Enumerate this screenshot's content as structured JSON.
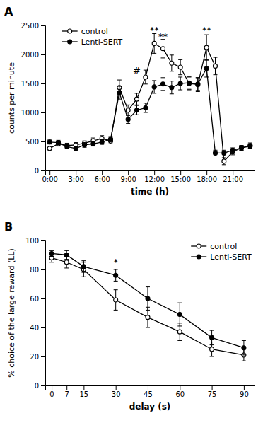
{
  "chart_data": [
    {
      "type": "line",
      "title": "A",
      "xlabel": "time (h)",
      "ylabel": "counts per minute",
      "x": [
        0,
        1,
        2,
        3,
        4,
        5,
        6,
        7,
        8,
        9,
        10,
        11,
        12,
        13,
        14,
        15,
        16,
        17,
        18,
        19,
        20,
        21,
        22,
        23
      ],
      "series": [
        {
          "name": "control",
          "color": "#000000",
          "marker": "open-circle",
          "values": [
            380,
            460,
            430,
            440,
            470,
            510,
            550,
            510,
            1430,
            1040,
            1230,
            1610,
            2190,
            2100,
            1850,
            1780,
            1500,
            1480,
            2120,
            1800,
            160,
            320,
            390,
            420
          ],
          "errors": [
            40,
            40,
            40,
            40,
            40,
            50,
            50,
            50,
            130,
            90,
            100,
            120,
            170,
            160,
            140,
            130,
            110,
            120,
            220,
            150,
            60,
            50,
            40,
            40
          ]
        },
        {
          "name": "Lenti-SERT",
          "color": "#000000",
          "marker": "circle",
          "values": [
            490,
            480,
            410,
            380,
            440,
            460,
            490,
            540,
            1340,
            880,
            1040,
            1080,
            1440,
            1490,
            1430,
            1500,
            1510,
            1490,
            1760,
            300,
            300,
            350,
            390,
            430
          ],
          "errors": [
            35,
            40,
            35,
            35,
            40,
            40,
            40,
            45,
            110,
            70,
            80,
            80,
            110,
            110,
            110,
            110,
            110,
            110,
            150,
            50,
            50,
            40,
            40,
            45
          ]
        }
      ],
      "xlim": [
        -0.5,
        23.5
      ],
      "xticks": [
        {
          "value": 0,
          "label": "0:00"
        },
        {
          "value": 3,
          "label": "3:00"
        },
        {
          "value": 6,
          "label": "6:00"
        },
        {
          "value": 9,
          "label": "9:00"
        },
        {
          "value": 12,
          "label": "12:00"
        },
        {
          "value": 15,
          "label": "15:00"
        },
        {
          "value": 18,
          "label": "18:00"
        },
        {
          "value": 21,
          "label": "21:00"
        }
      ],
      "ylim": [
        0,
        2500
      ],
      "yticks": [
        0,
        500,
        1000,
        1500,
        2000,
        2500
      ],
      "annotations": [
        {
          "text": "#",
          "x": 10,
          "y": 1670
        },
        {
          "text": "**",
          "x": 12,
          "y": 2370
        },
        {
          "text": "**",
          "x": 13,
          "y": 2260
        },
        {
          "text": "**",
          "x": 18,
          "y": 2360
        }
      ],
      "legend": "upper left",
      "grid": false
    },
    {
      "type": "line",
      "title": "B",
      "xlabel": "delay (s)",
      "ylabel": "% choice of the large reward (LL)",
      "x": [
        0,
        7,
        15,
        30,
        45,
        60,
        75,
        90
      ],
      "series": [
        {
          "name": "control",
          "color": "#000000",
          "marker": "open-circle",
          "values": [
            88,
            85,
            80,
            59,
            47,
            37,
            25,
            21
          ],
          "errors": [
            3,
            4,
            5,
            7,
            7,
            6,
            5,
            4
          ]
        },
        {
          "name": "Lenti-SERT",
          "color": "#000000",
          "marker": "circle",
          "values": [
            91,
            90,
            82,
            76,
            60,
            49,
            33,
            26
          ],
          "errors": [
            2,
            3,
            4,
            4,
            8,
            8,
            5,
            5
          ]
        }
      ],
      "xlim": [
        -3,
        95
      ],
      "xticks": [
        0,
        7,
        15,
        30,
        45,
        60,
        75,
        90
      ],
      "ylim": [
        0,
        100
      ],
      "yticks": [
        0,
        20,
        40,
        60,
        80,
        100
      ],
      "annotations": [
        {
          "text": "*",
          "x": 30,
          "y": 83
        }
      ],
      "legend": "upper right",
      "grid": false
    }
  ]
}
